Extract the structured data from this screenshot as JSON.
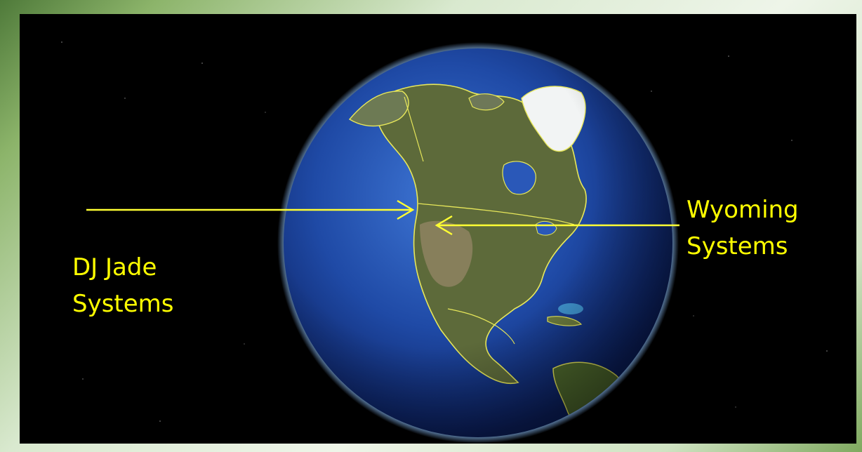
{
  "labels": {
    "left": {
      "line1": "DJ Jade",
      "line2": "Systems"
    },
    "right": {
      "line1": "Wyoming",
      "line2": "Systems"
    }
  },
  "colors": {
    "label_text": "#ffff00",
    "arrows": "#ffff33",
    "borders": "#e7e75a",
    "space": "#000000",
    "ocean": "#1f4aa6",
    "land": "#5f6e3a",
    "ice": "#f2f4f4"
  }
}
